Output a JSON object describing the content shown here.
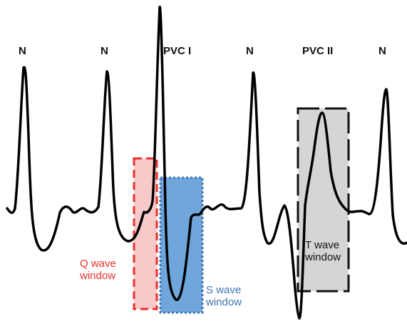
{
  "beat_labels": {
    "n1": "N",
    "n2": "N",
    "pvc1": "PVC I",
    "n3": "N",
    "pvc2": "PVC II",
    "n4": "N"
  },
  "windows": {
    "q": {
      "label": "Q wave\nwindow",
      "color": "#e8322d",
      "fill": "#f7c9c9"
    },
    "s": {
      "label": "S wave\nwindow",
      "color": "#3d73b6",
      "fill": "#6fa7dd"
    },
    "t": {
      "label": "T wave\nwindow",
      "color": "#111111",
      "fill": "#d5d5d5"
    }
  },
  "trace": {
    "color": "#000000"
  }
}
